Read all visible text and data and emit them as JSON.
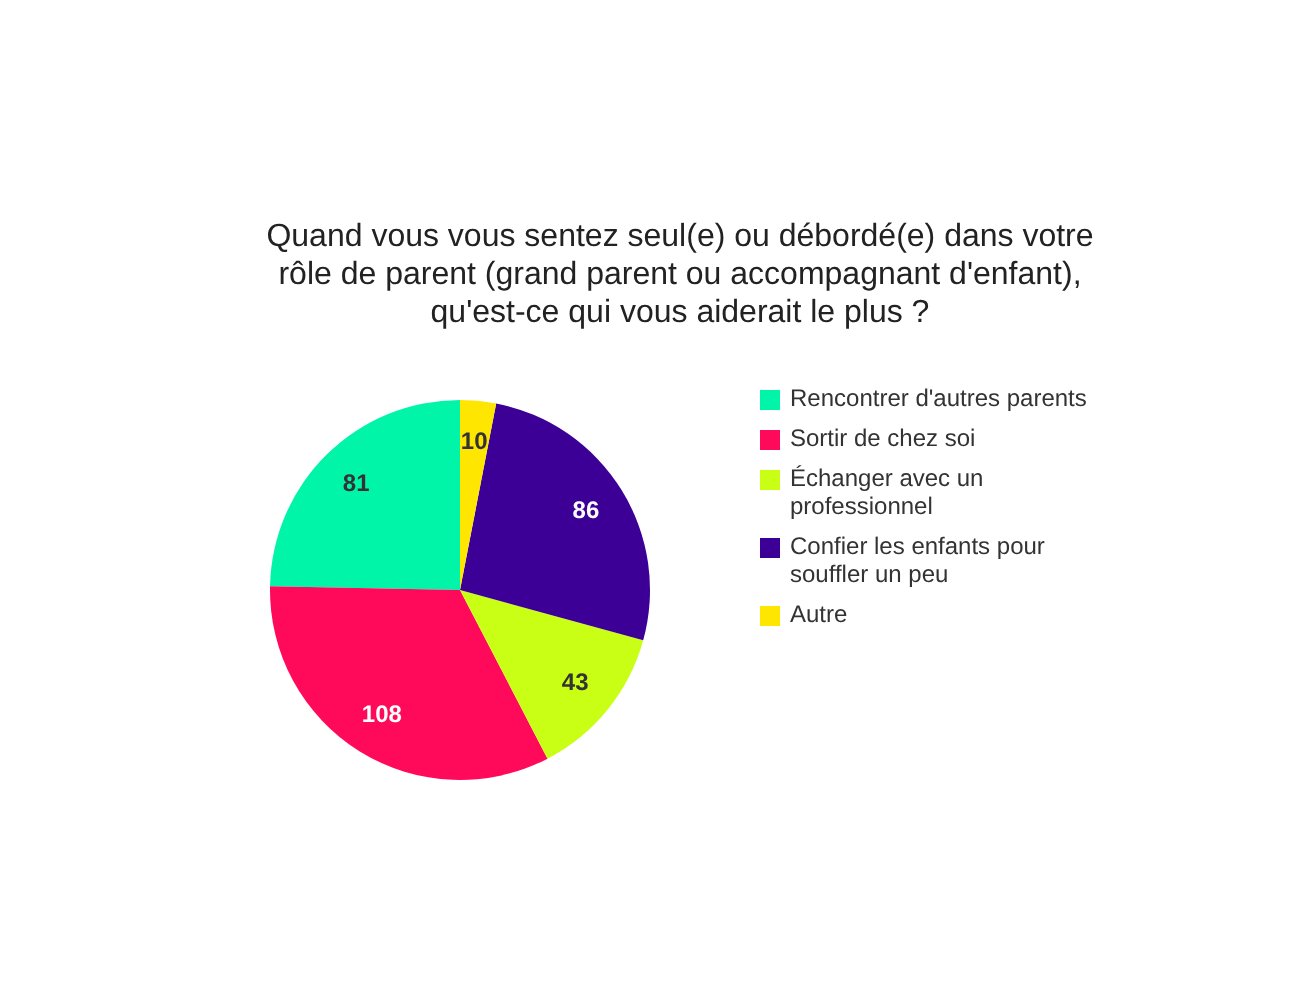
{
  "chart_data": {
    "type": "pie",
    "title": "Quand vous vous sentez seul(e) ou débordé(e) dans votre rôle de parent (grand parent ou accompagnant d'enfant), qu'est-ce qui vous aiderait le plus ?",
    "categories": [
      "Rencontrer d'autres parents",
      "Sortir de chez soi",
      "Échanger avec un professionnel",
      "Confier les enfants pour souffler un peu",
      "Autre"
    ],
    "values": [
      81,
      108,
      43,
      86,
      10
    ],
    "colors": [
      "#00f5a8",
      "#ff0a5a",
      "#c8ff14",
      "#3c0096",
      "#ffe600"
    ],
    "data_labels": true,
    "legend": "right"
  }
}
